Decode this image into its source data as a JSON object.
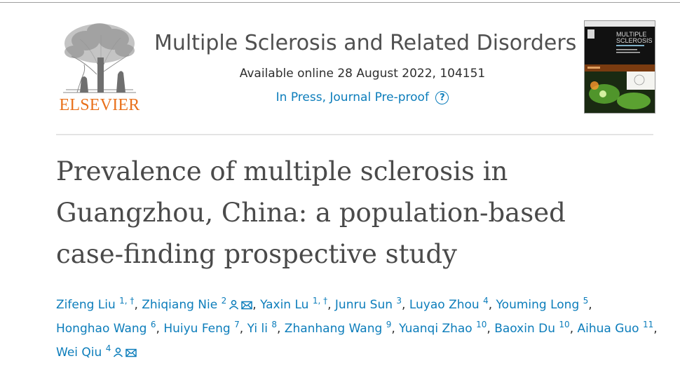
{
  "publisher": {
    "name": "ELSEVIER"
  },
  "journal": {
    "title": "Multiple Sclerosis and Related Disorders",
    "available": "Available online 28 August 2022, 104151",
    "status": "In Press, Journal Pre-proof",
    "help_icon": "question-circle-icon",
    "cover_title_line1": "MULTIPLE",
    "cover_title_line2": "SCLEROSIS"
  },
  "article": {
    "title_lines": [
      "Prevalence of multiple sclerosis in",
      "Guangzhou, China: a population-based",
      "case-finding prospective study"
    ]
  },
  "authors": [
    {
      "name": "Zifeng Liu",
      "sup": "1, †"
    },
    {
      "name": "Zhiqiang Nie",
      "sup": "2",
      "icons": [
        "person-icon",
        "envelope-icon"
      ]
    },
    {
      "name": "Yaxin Lu",
      "sup": "1, †"
    },
    {
      "name": "Junru Sun",
      "sup": "3"
    },
    {
      "name": "Luyao Zhou",
      "sup": "4"
    },
    {
      "name": "Youming Long",
      "sup": "5"
    },
    {
      "name": "Honghao Wang",
      "sup": "6"
    },
    {
      "name": "Huiyu Feng",
      "sup": "7"
    },
    {
      "name": "Yi li",
      "sup": "8"
    },
    {
      "name": "Zhanhang Wang",
      "sup": "9"
    },
    {
      "name": "Yuanqi Zhao",
      "sup": "10"
    },
    {
      "name": "Baoxin Du",
      "sup": "10"
    },
    {
      "name": "Aihua Guo",
      "sup": "11"
    },
    {
      "name": "Wei Qiu",
      "sup": "4",
      "icons": [
        "person-icon",
        "envelope-icon"
      ]
    }
  ],
  "colors": {
    "link": "#0c7dbb",
    "elsevier_orange": "#e9711c",
    "title": "#4a4a4a",
    "divider": "#e4e4e4"
  }
}
